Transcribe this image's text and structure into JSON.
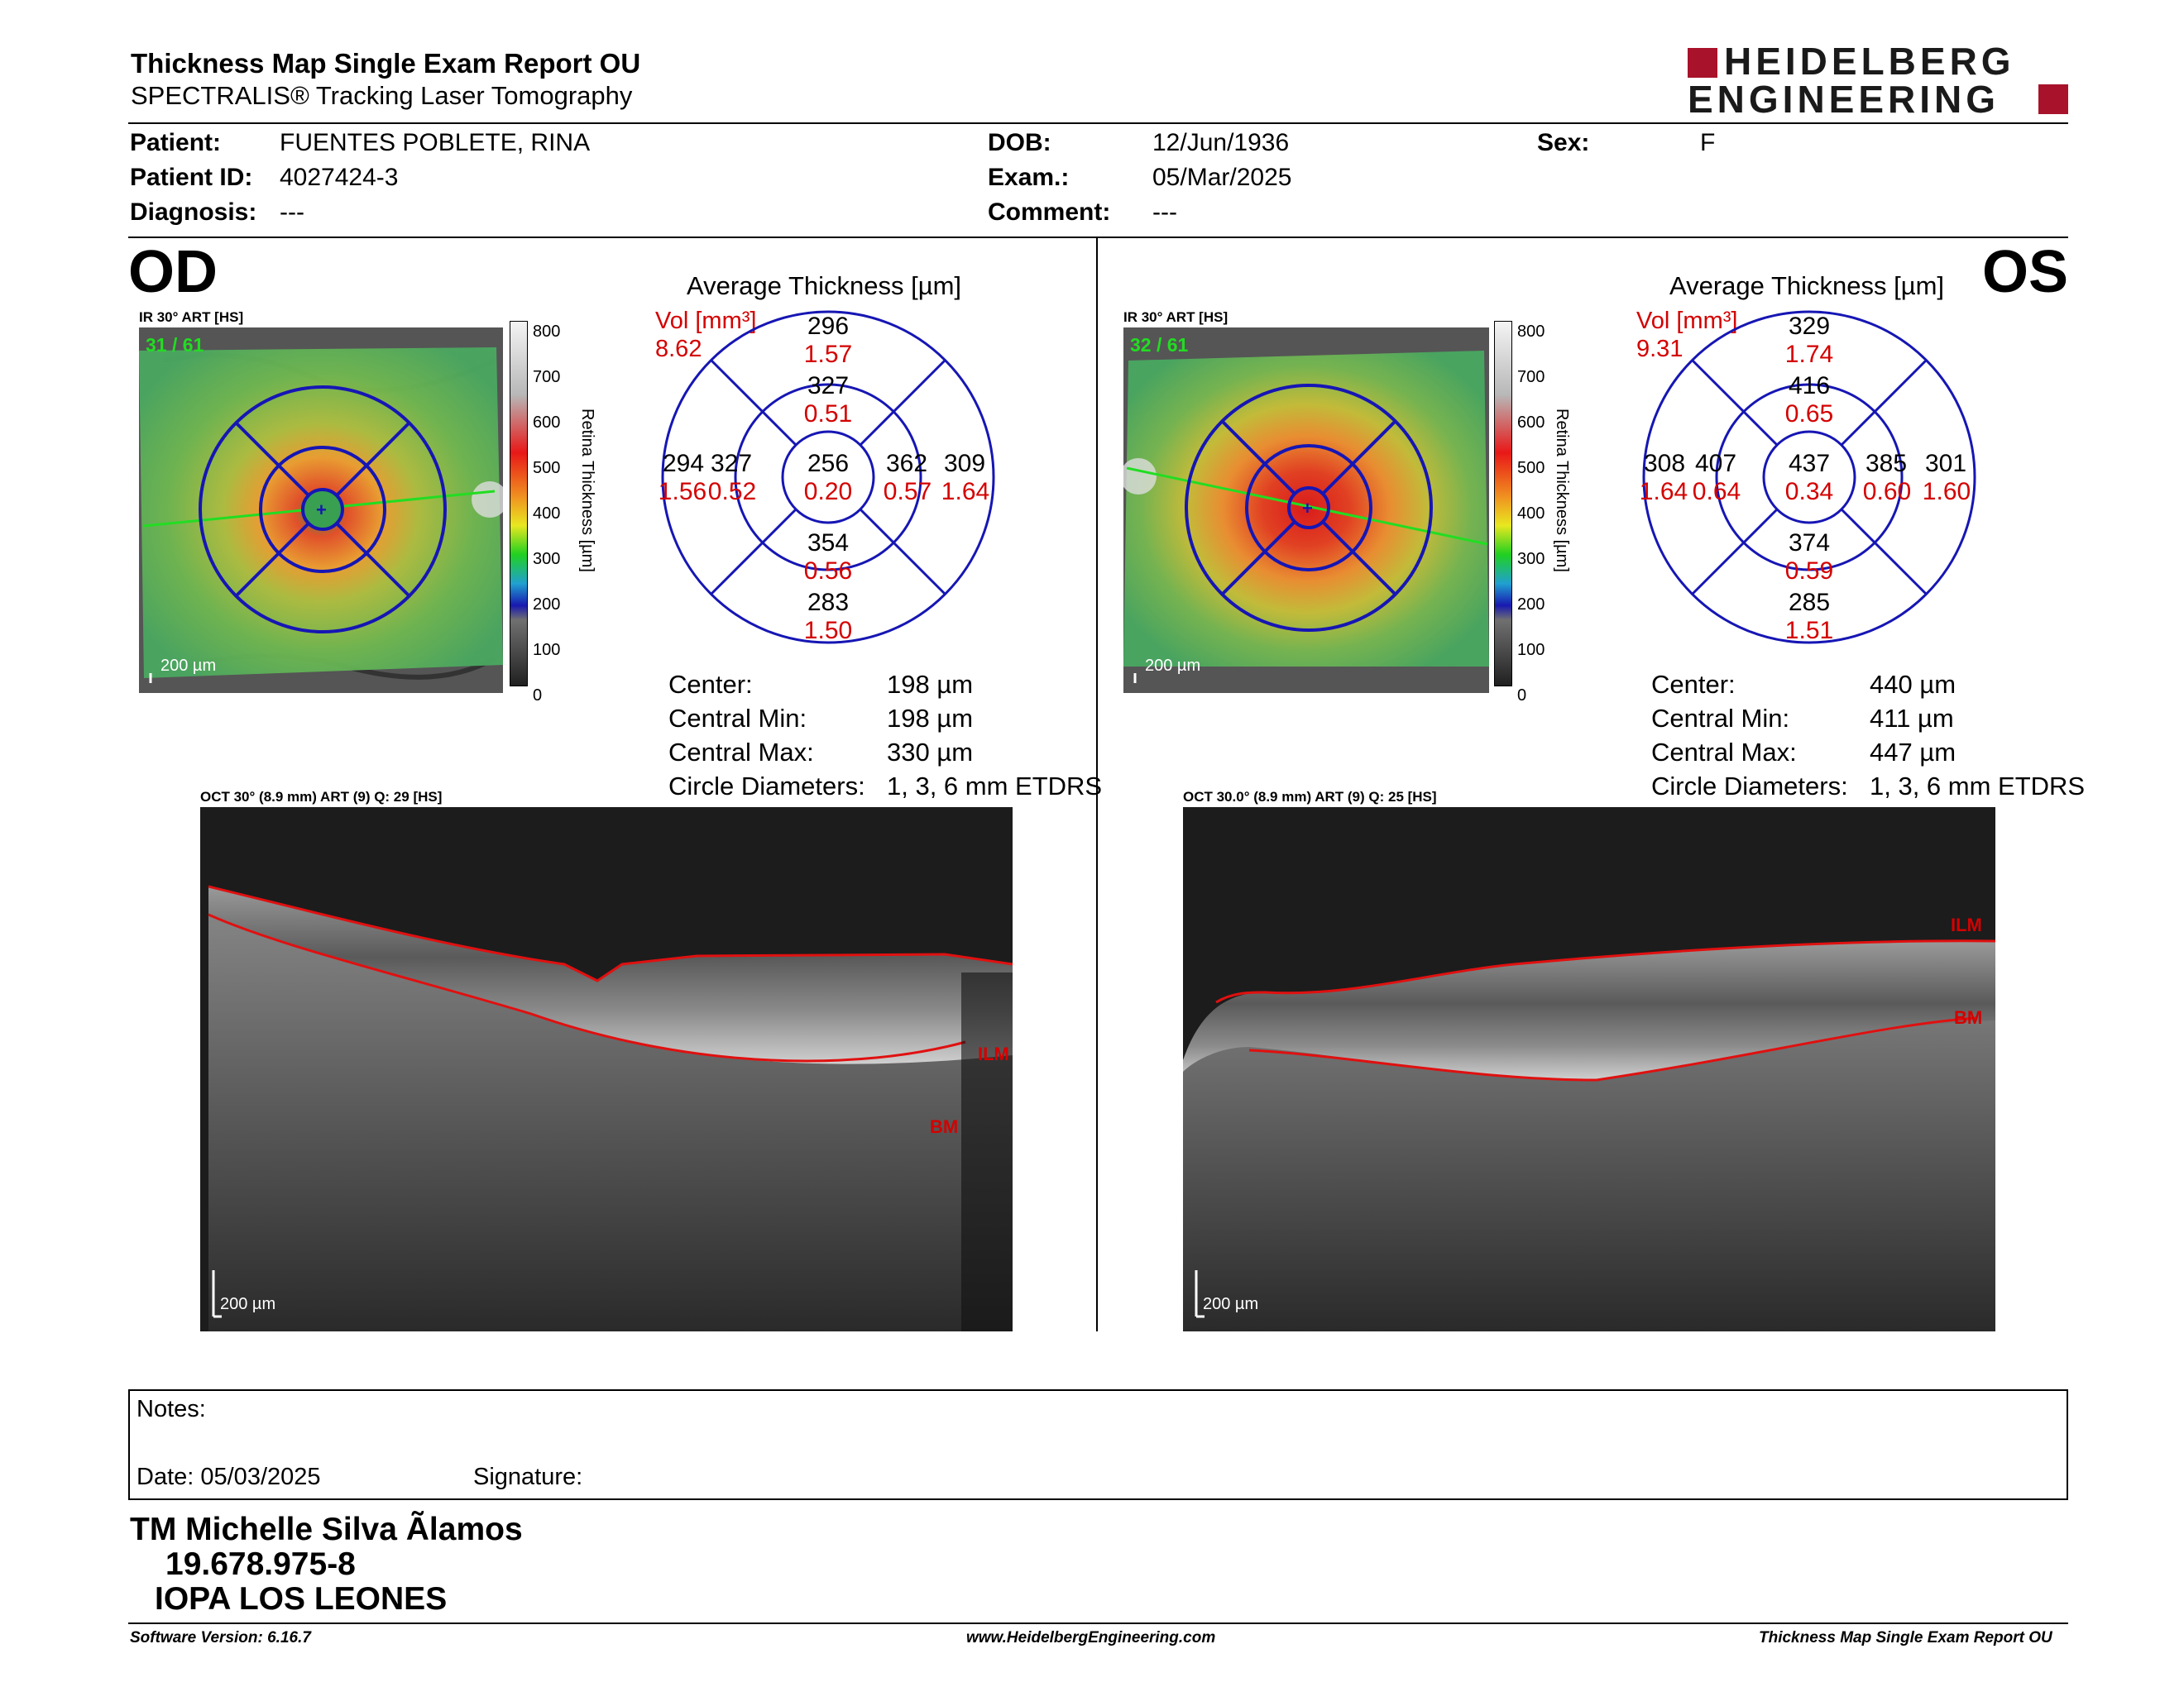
{
  "header": {
    "title": "Thickness Map Single Exam Report OU",
    "subtitle": "SPECTRALIS® Tracking Laser Tomography",
    "logo_line1": "HEIDELBERG",
    "logo_line2": "ENGINEERING"
  },
  "patient": {
    "patient_label": "Patient:",
    "patient_value": "FUENTES POBLETE, RINA",
    "id_label": "Patient ID:",
    "id_value": "4027424-3",
    "diag_label": "Diagnosis:",
    "diag_value": "---",
    "dob_label": "DOB:",
    "dob_value": "12/Jun/1936",
    "exam_label": "Exam.:",
    "exam_value": "05/Mar/2025",
    "comment_label": "Comment:",
    "comment_value": "---",
    "sex_label": "Sex:",
    "sex_value": "F"
  },
  "colorbar": {
    "ticks": [
      "800",
      "700",
      "600",
      "500",
      "400",
      "300",
      "200",
      "100",
      "0"
    ],
    "label": "Retina  Thickness [µm]"
  },
  "od": {
    "eye": "OD",
    "fundus_label": "IR 30° ART [HS]",
    "frames": "31 / 61",
    "scale": "200 µm",
    "avg_title": "Average Thickness [µm]",
    "vol_label": "Vol [mm³]",
    "vol_value": "8.62",
    "sectors": {
      "outer_sup": [
        "296",
        "1.57"
      ],
      "inner_sup": [
        "327",
        "0.51"
      ],
      "outer_temp": [
        "294",
        "1.56"
      ],
      "inner_temp": [
        "327",
        "0.52"
      ],
      "center": [
        "256",
        "0.20"
      ],
      "inner_nasal": [
        "362",
        "0.57"
      ],
      "outer_nasal": [
        "309",
        "1.64"
      ],
      "inner_inf": [
        "354",
        "0.56"
      ],
      "outer_inf": [
        "283",
        "1.50"
      ]
    },
    "stats": [
      {
        "label": "Center:",
        "value": "198 µm"
      },
      {
        "label": "Central Min:",
        "value": "198 µm"
      },
      {
        "label": "Central Max:",
        "value": "330 µm"
      },
      {
        "label": "Circle Diameters:",
        "value": "1, 3, 6 mm ETDRS"
      }
    ],
    "oct_label": "OCT 30° (8.9 mm) ART (9) Q: 29 [HS]",
    "oct_scale": "200 µm",
    "ilm": "ILM",
    "bm": "BM"
  },
  "os": {
    "eye": "OS",
    "fundus_label": "IR 30° ART [HS]",
    "frames": "32 / 61",
    "scale": "200 µm",
    "avg_title": "Average Thickness [µm]",
    "vol_label": "Vol [mm³]",
    "vol_value": "9.31",
    "sectors": {
      "outer_sup": [
        "329",
        "1.74"
      ],
      "inner_sup": [
        "416",
        "0.65"
      ],
      "outer_temp": [
        "308",
        "1.64"
      ],
      "inner_temp": [
        "407",
        "0.64"
      ],
      "center": [
        "437",
        "0.34"
      ],
      "inner_nasal": [
        "385",
        "0.60"
      ],
      "outer_nasal": [
        "301",
        "1.60"
      ],
      "inner_inf": [
        "374",
        "0.59"
      ],
      "outer_inf": [
        "285",
        "1.51"
      ]
    },
    "stats": [
      {
        "label": "Center:",
        "value": "440 µm"
      },
      {
        "label": "Central Min:",
        "value": "411 µm"
      },
      {
        "label": "Central Max:",
        "value": "447 µm"
      },
      {
        "label": "Circle Diameters:",
        "value": "1, 3, 6 mm ETDRS"
      }
    ],
    "oct_label": "OCT 30.0° (8.9 mm) ART (9) Q: 25 [HS]",
    "oct_scale": "200 µm",
    "ilm": "ILM",
    "bm": "BM"
  },
  "notes": {
    "notes_label": "Notes:",
    "date_label": "Date: 05/03/2025",
    "signature_label": "Signature:"
  },
  "signoff": {
    "name": "TM Michelle Silva Ãlamos",
    "rut": "19.678.975-8",
    "org": "IOPA LOS LEONES"
  },
  "footer": {
    "software": "Software Version: 6.16.7",
    "website": "www.HeidelbergEngineering.com",
    "report": "Thickness Map Single Exam Report OU"
  },
  "colors": {
    "logo_red": "#a8122a",
    "ring_blue": "#1616b4",
    "value_red": "#d40000",
    "seg_red": "#e01010"
  }
}
